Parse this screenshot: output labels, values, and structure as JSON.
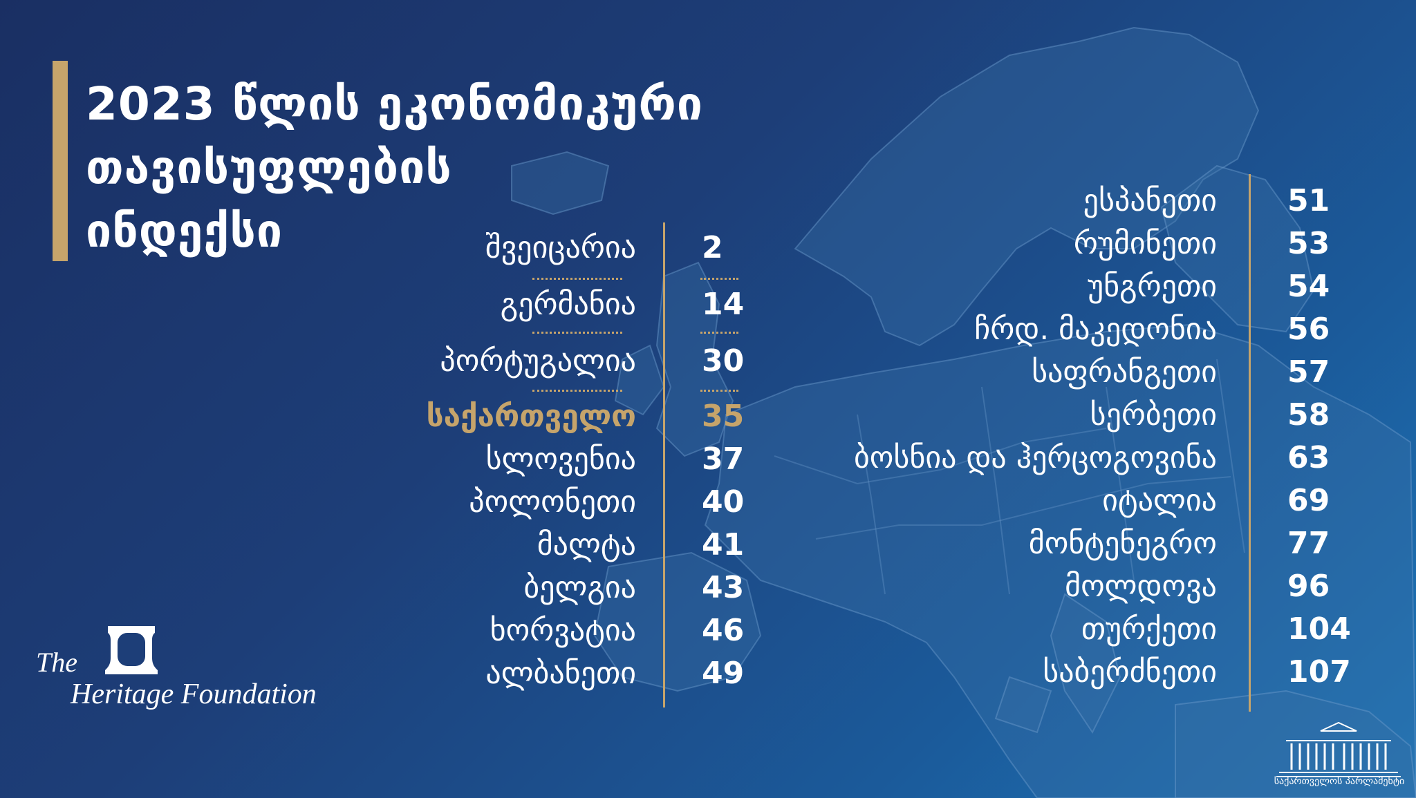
{
  "title": {
    "line1": "2023 წლის ეკონომიკური",
    "line2": "თავისუფლების",
    "line3": "ინდექსი"
  },
  "left_list": [
    {
      "country": "შვეიცარია",
      "rank": "2"
    },
    {
      "country": "გერმანია",
      "rank": "14"
    },
    {
      "country": "პორტუგალია",
      "rank": "30"
    },
    {
      "country": "საქართველო",
      "rank": "35",
      "highlight": true
    },
    {
      "country": "სლოვენია",
      "rank": "37"
    },
    {
      "country": "პოლონეთი",
      "rank": "40"
    },
    {
      "country": "მალტა",
      "rank": "41"
    },
    {
      "country": "ბელგია",
      "rank": "43"
    },
    {
      "country": "ხორვატია",
      "rank": "46"
    },
    {
      "country": "ალბანეთი",
      "rank": "49"
    }
  ],
  "right_list": [
    {
      "country": "ესპანეთი",
      "rank": "51"
    },
    {
      "country": "რუმინეთი",
      "rank": "53"
    },
    {
      "country": "უნგრეთი",
      "rank": "54"
    },
    {
      "country": "ჩრდ. მაკედონია",
      "rank": "56"
    },
    {
      "country": "საფრანგეთი",
      "rank": "57"
    },
    {
      "country": "სერბეთი",
      "rank": "58"
    },
    {
      "country": "ბოსნია და ჰერცოგოვინა",
      "rank": "63"
    },
    {
      "country": "იტალია",
      "rank": "69"
    },
    {
      "country": "მონტენეგრო",
      "rank": "77"
    },
    {
      "country": "მოლდოვა",
      "rank": "96"
    },
    {
      "country": "თურქეთი",
      "rank": "104"
    },
    {
      "country": "საბერძნეთი",
      "rank": "107"
    }
  ],
  "logos": {
    "heritage_line1": "The",
    "heritage_line2": "Heritage Foundation",
    "parliament": "საქართველოს პარლამენტი"
  },
  "colors": {
    "accent_gold": "#c6a46b",
    "background_dark": "#1a2f63",
    "background_light": "#1d76b8",
    "text": "#ffffff"
  }
}
